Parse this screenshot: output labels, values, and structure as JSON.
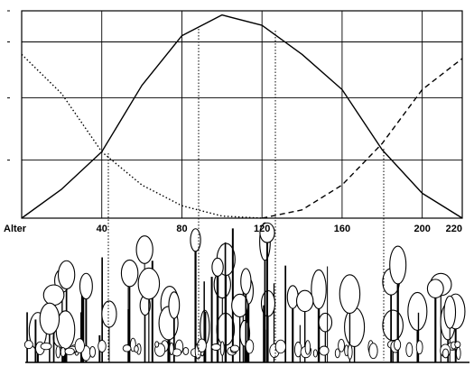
{
  "chart_data": {
    "type": "line",
    "x_label": "Alter",
    "x": [
      0,
      20,
      40,
      60,
      80,
      100,
      120,
      140,
      160,
      180,
      200,
      220
    ],
    "series": [
      {
        "color": "#000000",
        "style": "solid",
        "values": [
          0,
          14,
          32,
          64,
          88,
          98,
          93,
          79,
          62,
          33,
          12,
          0
        ]
      },
      {
        "color": "#000000",
        "style": "dotted",
        "values": [
          79,
          60,
          32,
          16,
          6,
          1,
          0,
          null,
          null,
          null,
          null,
          null
        ]
      },
      {
        "color": "#000000",
        "style": "dashed",
        "values": [
          null,
          null,
          null,
          null,
          null,
          null,
          0,
          4,
          16,
          36,
          62,
          77
        ]
      }
    ],
    "xlim": [
      0,
      220
    ],
    "xticks": [
      40,
      80,
      120,
      160,
      200,
      220
    ],
    "ylim": [
      0,
      100
    ],
    "yticks": [
      28,
      58,
      85,
      100
    ],
    "grid": true
  }
}
